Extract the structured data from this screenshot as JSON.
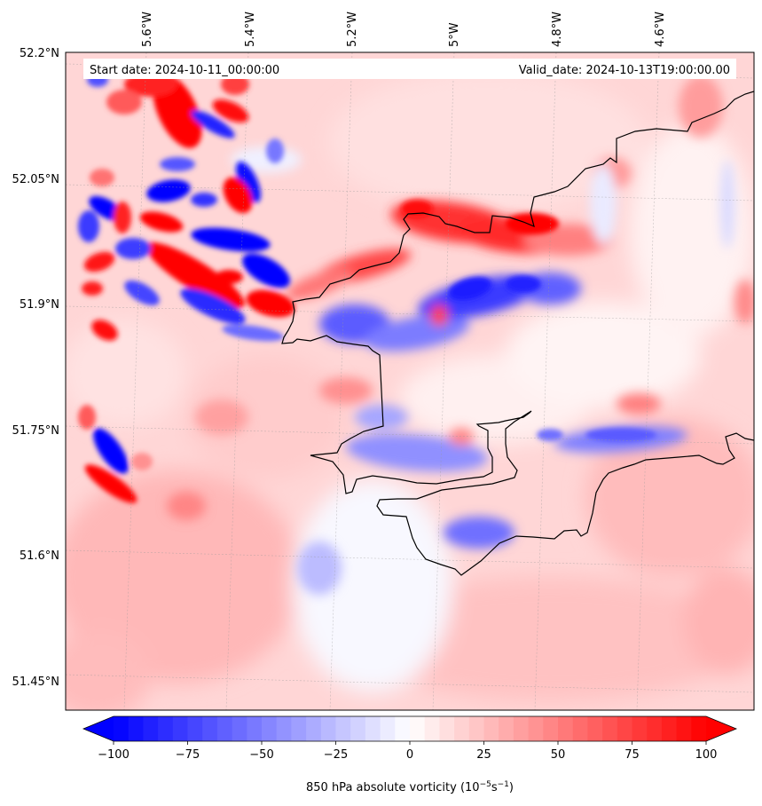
{
  "header": {
    "start_date": "Start date: 2024-10-11_00:00:00",
    "valid_date": "Valid_date: 2024-10-13T19:00:00.00"
  },
  "map": {
    "lon_labels": [
      "5.6°W",
      "5.4°W",
      "5.2°W",
      "5°W",
      "4.8°W",
      "4.6°W"
    ],
    "lat_labels": [
      "52.2°N",
      "52.05°N",
      "51.9°N",
      "51.75°N",
      "51.6°N",
      "51.45°N"
    ],
    "field": "850 hPa absolute vorticity",
    "colormap": "bwr",
    "colors": {
      "negative": "#0000ff",
      "neutral": "#ffffff",
      "positive": "#ff0000",
      "coastline": "#000000"
    }
  },
  "colorbar": {
    "ticks": [
      "−100",
      "−75",
      "−50",
      "−25",
      "0",
      "25",
      "50",
      "75",
      "100"
    ],
    "tick_values": [
      -100,
      -75,
      -50,
      -25,
      0,
      25,
      50,
      75,
      100
    ],
    "label_main": "850 hPa absolute vorticity (10",
    "label_exp1": "−5",
    "label_mid": "s",
    "label_exp2": "−1",
    "label_end": ")",
    "extend": "both",
    "range": [
      -100,
      100
    ],
    "levels": 40
  }
}
